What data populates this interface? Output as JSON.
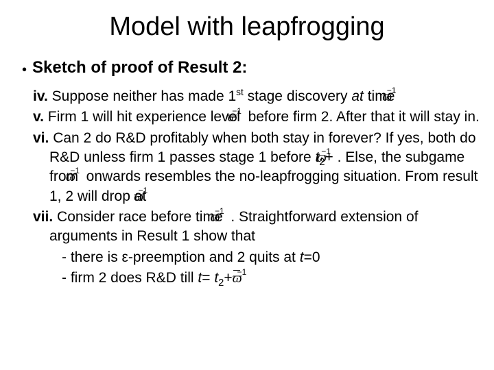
{
  "title": "Model with leapfrogging",
  "heading": "Sketch of proof of Result 2:",
  "items": {
    "iv": {
      "num": "iv.",
      "pre": " Suppose neither has made 1",
      "sup": "st",
      "mid": " stage discovery ",
      "at_it": "at  ",
      "time_word": "time "
    },
    "v": {
      "num": "v.",
      "pre": " Firm 1 will hit experience level ",
      "post": "   before firm 2. After that it will stay in."
    },
    "vi": {
      "num": "vi.",
      "l1": " Can 2  do R&D profitably when both stay in forever? If yes, both do R&D unless firm 1 passes stage 1 before ",
      "t2": "t",
      "plus1": " . Else, the subgame from ",
      "post_sub": "  onwards resembles the no-leapfrogging situation. From result 1, 2 will drop at "
    },
    "vii": {
      "num": "vii.",
      "l1": " Consider race before time ",
      "post": " . Straightforward extension of arguments in Result 1 show that",
      "d1_a": "- there is ε-preemption and 2 quits at ",
      "d1_t": "t",
      "d1_eq": "=0",
      "d2_a": "- firm 2 does R&D till ",
      "d2_t": "t",
      "d2_eq": "= ",
      "d2_t2": "t",
      "d2_plus": "+"
    }
  },
  "style": {
    "background_color": "#ffffff",
    "text_color": "#000000",
    "title_fontsize": 38,
    "heading_fontsize": 24,
    "body_fontsize": 21,
    "font_family": "Arial",
    "omega_glyph": "ϖ",
    "omega_exponent": "−1"
  }
}
